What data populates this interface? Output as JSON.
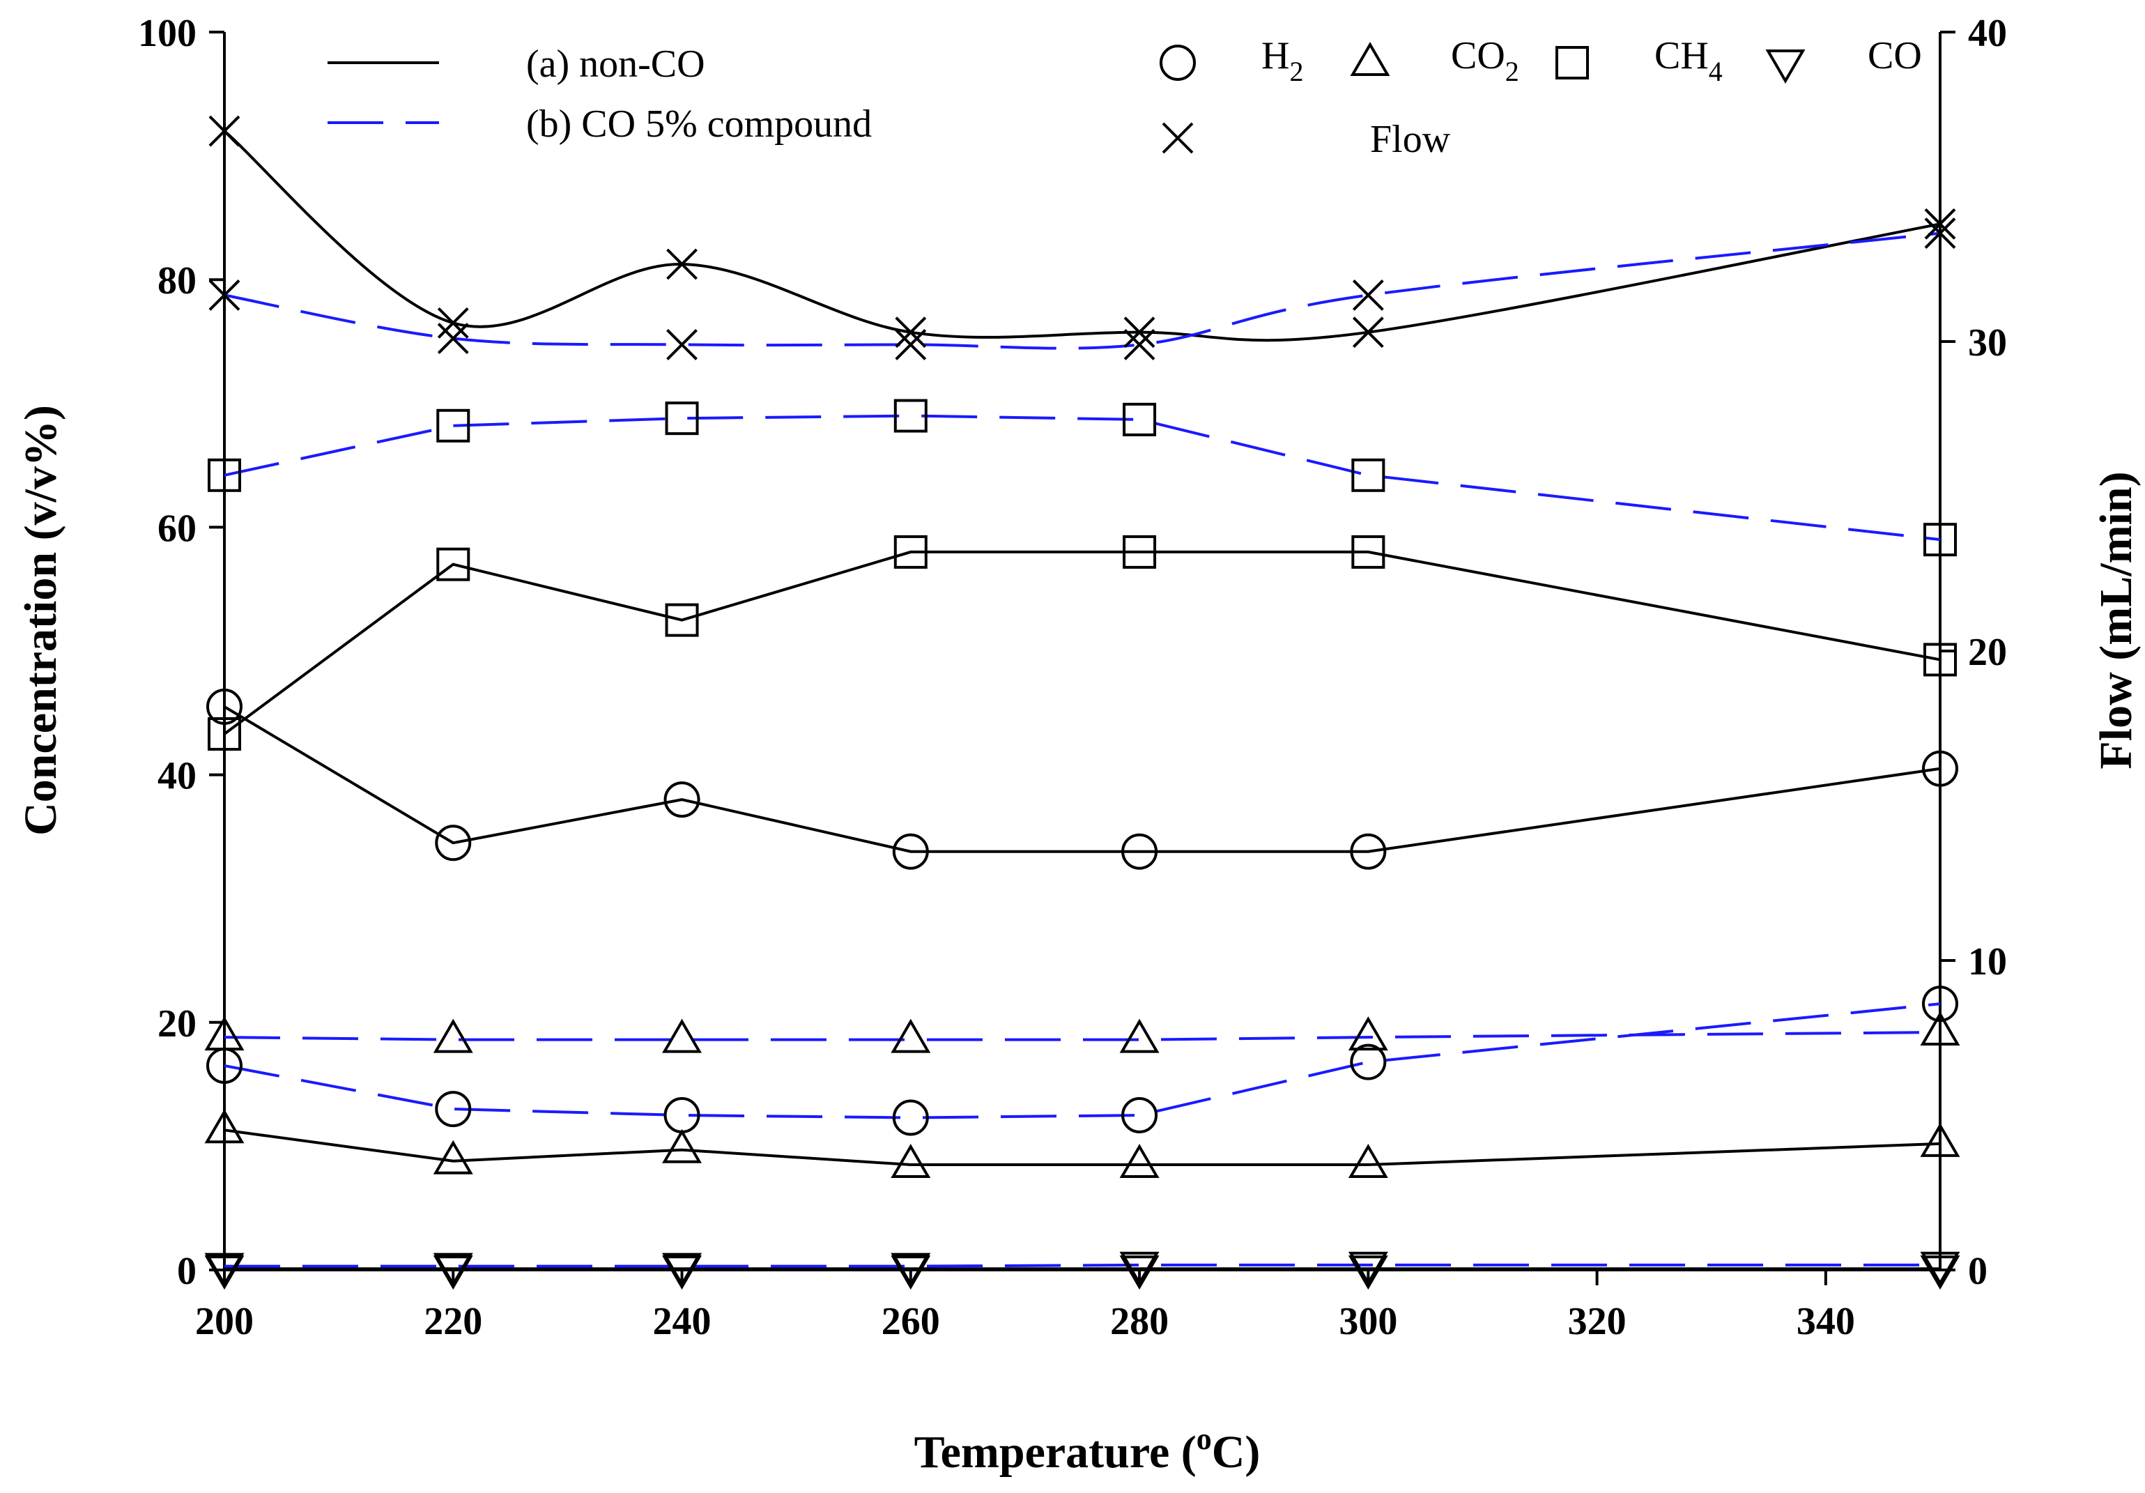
{
  "chart_data": {
    "type": "line",
    "title": "",
    "xlabel": {
      "main": "Temperature (",
      "sup": "o",
      "tail": "C)"
    },
    "ylabel": "Concentration (v/v%)",
    "y2label": "Flow (mL/min)",
    "xlim": [
      200,
      350
    ],
    "ylim": [
      0,
      100
    ],
    "y2lim": [
      0,
      40
    ],
    "x_ticks": [
      "200",
      "220",
      "240",
      "260",
      "280",
      "300",
      "320",
      "340"
    ],
    "x_tick_values": [
      200,
      220,
      240,
      260,
      280,
      300,
      320,
      340
    ],
    "y_ticks": [
      "0",
      "20",
      "40",
      "60",
      "80",
      "100"
    ],
    "y_tick_values": [
      0,
      20,
      40,
      60,
      80,
      100
    ],
    "y2_ticks": [
      "0",
      "10",
      "20",
      "30",
      "40"
    ],
    "y2_tick_values": [
      0,
      10,
      20,
      30,
      40
    ],
    "x": [
      200,
      220,
      240,
      260,
      280,
      300,
      350
    ],
    "legend": {
      "lines": [
        {
          "label": "(a) non-CO",
          "style": "solid"
        },
        {
          "label": "(b) CO 5% compound",
          "style": "dashed"
        }
      ],
      "markers": [
        {
          "marker": "circle",
          "text": "H",
          "sub": "2"
        },
        {
          "marker": "triangle-up",
          "text": "CO",
          "sub": "2"
        },
        {
          "marker": "square",
          "text": "CH",
          "sub": "4"
        },
        {
          "marker": "triangle-down",
          "text": "CO",
          "sub": ""
        },
        {
          "marker": "x",
          "text": "Flow",
          "sub": ""
        }
      ]
    },
    "series": [
      {
        "name": "H2 (a) non-CO",
        "axis": "left",
        "marker": "circle",
        "style": "solid",
        "values": [
          45.5,
          34.5,
          38,
          33.8,
          33.8,
          33.8,
          40.5
        ]
      },
      {
        "name": "H2 (b) CO 5% compound",
        "axis": "left",
        "marker": "circle",
        "style": "dashed",
        "values": [
          16.5,
          13,
          12.5,
          12.3,
          12.5,
          16.8,
          21.5
        ]
      },
      {
        "name": "CO2 (a) non-CO",
        "axis": "left",
        "marker": "triangle-up",
        "style": "solid",
        "values": [
          11.3,
          8.8,
          9.7,
          8.5,
          8.5,
          8.5,
          10.2
        ]
      },
      {
        "name": "CO2 (b) CO 5% compound",
        "axis": "left",
        "marker": "triangle-up",
        "style": "dashed",
        "values": [
          18.8,
          18.6,
          18.6,
          18.6,
          18.6,
          18.8,
          19.2
        ]
      },
      {
        "name": "CH4 (a) non-CO",
        "axis": "left",
        "marker": "square",
        "style": "solid",
        "values": [
          43.3,
          57,
          52.5,
          58,
          58,
          58,
          49.3
        ]
      },
      {
        "name": "CH4 (b) CO 5% compound",
        "axis": "left",
        "marker": "square",
        "style": "dashed",
        "values": [
          64.2,
          68.2,
          68.8,
          69,
          68.7,
          64.2,
          59
        ]
      },
      {
        "name": "CO (a) non-CO",
        "axis": "left",
        "marker": "triangle-down",
        "style": "solid",
        "values": [
          0.1,
          0.1,
          0.1,
          0.1,
          0.1,
          0.1,
          0.1
        ]
      },
      {
        "name": "CO (b) CO 5% compound",
        "axis": "left",
        "marker": "triangle-down",
        "style": "dashed",
        "values": [
          0.3,
          0.3,
          0.3,
          0.3,
          0.4,
          0.4,
          0.4
        ]
      },
      {
        "name": "Flow (a) non-CO",
        "axis": "right",
        "marker": "x",
        "style": "solid",
        "smooth": true,
        "values": [
          36.8,
          30.6,
          32.5,
          30.3,
          30.3,
          30.3,
          33.8
        ]
      },
      {
        "name": "Flow (b) CO 5% compound",
        "axis": "right",
        "marker": "x",
        "style": "dashed",
        "smooth": true,
        "values": [
          31.5,
          30.1,
          29.9,
          29.9,
          29.9,
          31.5,
          33.5
        ]
      }
    ],
    "colors": {
      "solid": "#000000",
      "dashed": "#1a1aff",
      "axis": "#000000"
    }
  }
}
